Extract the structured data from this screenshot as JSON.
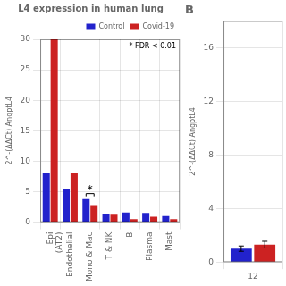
{
  "chart_data": [
    {
      "type": "bar",
      "title": "L4 expression in human lung",
      "categories": [
        "Epi\n(AT2)",
        "Endothelial",
        "Mono & Mac",
        "T & NK",
        "B",
        "Plasma",
        "Mast"
      ],
      "series": [
        {
          "name": "Control",
          "color": "#2222CC",
          "values": [
            8.0,
            5.5,
            3.8,
            1.3,
            1.6,
            1.5,
            1.0
          ]
        },
        {
          "name": "Covid-19",
          "color": "#CC2222",
          "values": [
            30.0,
            8.0,
            2.8,
            1.2,
            0.5,
            0.9,
            0.5
          ]
        }
      ],
      "ylabel": "2^-(ΔΔCt) AngptL4",
      "ylim": [
        0,
        30
      ],
      "yticks": [
        0,
        5,
        10,
        15,
        20,
        25,
        30
      ],
      "grid": true,
      "legend": "upper right",
      "annotations": [
        {
          "text": "*",
          "category": "Mono & Mac"
        },
        {
          "text": "* FDR < 0.01"
        }
      ]
    },
    {
      "type": "bar",
      "title": "B",
      "categories": [
        "12"
      ],
      "series": [
        {
          "color": "#2222CC",
          "values": [
            1.0
          ],
          "errors": [
            0.2
          ]
        },
        {
          "color": "#CC2222",
          "values": [
            1.3
          ],
          "errors": [
            0.25
          ]
        }
      ],
      "ylabel": "2^-(ΔΔCt) AngptL4",
      "ylim": [
        0,
        18
      ],
      "yticks": [
        0,
        4,
        8,
        12,
        16
      ],
      "grid": true
    }
  ]
}
